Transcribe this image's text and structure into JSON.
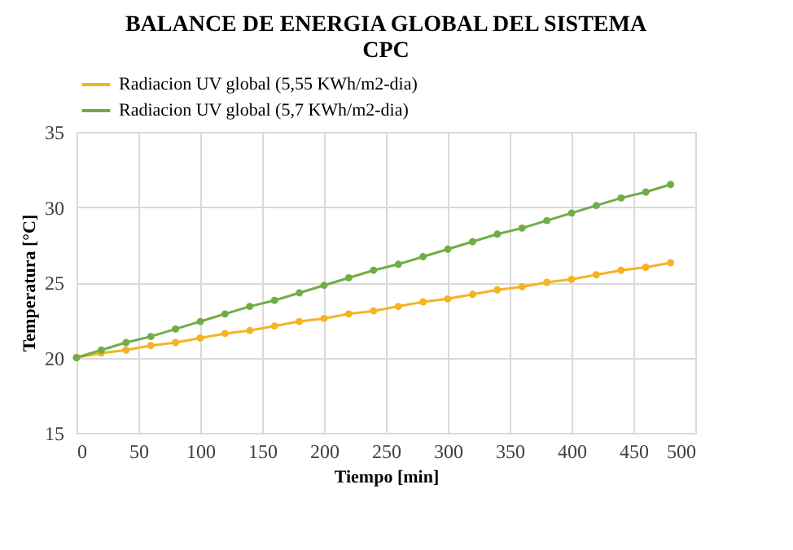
{
  "chart_data": {
    "type": "line",
    "title": "BALANCE DE ENERGIA GLOBAL DEL SISTEMA CPC",
    "xlabel": "Tiempo [min]",
    "ylabel": "Temperatura [°C]",
    "x": [
      0,
      20,
      40,
      60,
      80,
      100,
      120,
      140,
      160,
      180,
      200,
      220,
      240,
      260,
      280,
      300,
      320,
      340,
      360,
      380,
      400,
      420,
      440,
      460,
      480
    ],
    "series": [
      {
        "name": "Radiacion UV global (5,55 KWh/m2-dia)",
        "color": "#f5b324",
        "values": [
          20,
          20.3,
          20.5,
          20.8,
          21.0,
          21.3,
          21.6,
          21.8,
          22.1,
          22.4,
          22.6,
          22.9,
          23.1,
          23.4,
          23.7,
          23.9,
          24.2,
          24.5,
          24.7,
          25.0,
          25.2,
          25.5,
          25.8,
          26.0,
          26.3
        ]
      },
      {
        "name": "Radiacion UV global (5,7 KWh/m2-dia)",
        "color": "#70ad47",
        "values": [
          20,
          20.5,
          21.0,
          21.4,
          21.9,
          22.4,
          22.9,
          23.4,
          23.8,
          24.3,
          24.8,
          25.3,
          25.8,
          26.2,
          26.7,
          27.2,
          27.7,
          28.2,
          28.6,
          29.1,
          29.6,
          30.1,
          30.6,
          31.0,
          31.5
        ]
      }
    ],
    "xlim": [
      0,
      500
    ],
    "xticks": [
      0,
      50,
      100,
      150,
      200,
      250,
      300,
      350,
      400,
      450,
      500
    ],
    "ylim": [
      15,
      35
    ],
    "yticks": [
      15,
      20,
      25,
      30,
      35
    ],
    "grid": true,
    "legend": "top",
    "marker": "circle",
    "line_style": "solid"
  }
}
